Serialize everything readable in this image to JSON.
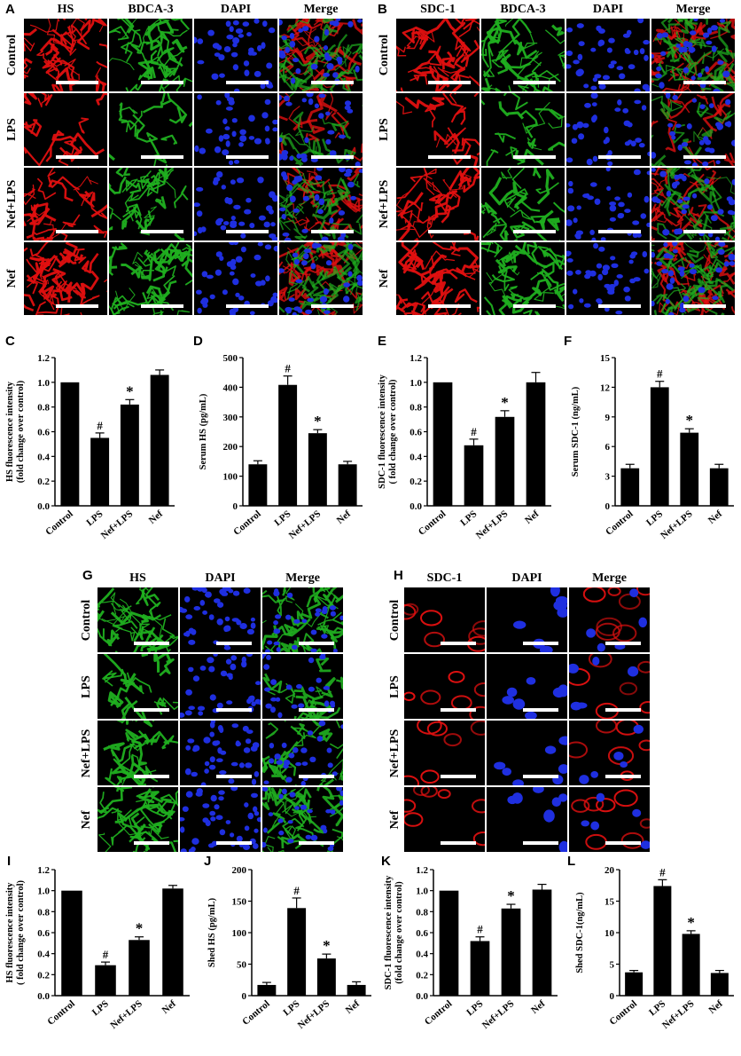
{
  "panel_letters": [
    "A",
    "B",
    "C",
    "D",
    "E",
    "F",
    "G",
    "H",
    "I",
    "J",
    "K",
    "L"
  ],
  "panel_A": {
    "columns": [
      "HS",
      "BDCA-3",
      "DAPI",
      "Merge"
    ],
    "rows": [
      "Control",
      "LPS",
      "Nef+LPS",
      "Nef"
    ]
  },
  "panel_B": {
    "columns": [
      "SDC-1",
      "BDCA-3",
      "DAPI",
      "Merge"
    ],
    "rows": [
      "Control",
      "LPS",
      "Nef+LPS",
      "Nef"
    ]
  },
  "panel_G": {
    "columns": [
      "HS",
      "DAPI",
      "Merge"
    ],
    "rows": [
      "Control",
      "LPS",
      "Nef+LPS",
      "Nef"
    ]
  },
  "panel_H": {
    "columns": [
      "SDC-1",
      "DAPI",
      "Merge"
    ],
    "rows": [
      "Control",
      "LPS",
      "Nef+LPS",
      "Nef"
    ]
  },
  "colors": {
    "red_stain": "#e01010",
    "green_stain": "#20b020",
    "blue_stain": "#1f2fe0",
    "bar": "#000000"
  },
  "chart_data": [
    {
      "id": "C",
      "type": "bar",
      "categories": [
        "Control",
        "LPS",
        "Nef+LPS",
        "Nef"
      ],
      "values": [
        1.0,
        0.55,
        0.82,
        1.06
      ],
      "errors": [
        0,
        0.04,
        0.04,
        0.04
      ],
      "marks": [
        "",
        "#",
        "*",
        ""
      ],
      "ylabel_lines": [
        "HS fluorescence intensity",
        "(fold change over control)"
      ],
      "ylim": [
        0,
        1.2
      ],
      "ticks": [
        "0.0",
        "0.2",
        "0.4",
        "0.6",
        "0.8",
        "1.0",
        "1.2"
      ]
    },
    {
      "id": "D",
      "type": "bar",
      "categories": [
        "Control",
        "LPS",
        "Nef+LPS",
        "Nef"
      ],
      "values": [
        140,
        408,
        245,
        140
      ],
      "errors": [
        12,
        30,
        12,
        10
      ],
      "marks": [
        "",
        "#",
        "*",
        ""
      ],
      "ylabel_lines": [
        "Serum HS (pg/mL)"
      ],
      "ylim": [
        0,
        500
      ],
      "ticks": [
        "0",
        "100",
        "200",
        "300",
        "400",
        "500"
      ]
    },
    {
      "id": "E",
      "type": "bar",
      "categories": [
        "Control",
        "LPS",
        "Nef+LPS",
        "Nef"
      ],
      "values": [
        1.0,
        0.49,
        0.72,
        1.0
      ],
      "errors": [
        0,
        0.05,
        0.05,
        0.08
      ],
      "marks": [
        "",
        "#",
        "*",
        ""
      ],
      "ylabel_lines": [
        "SDC-1 fluorescence intensity",
        "( fold change over control)"
      ],
      "ylim": [
        0,
        1.2
      ],
      "ticks": [
        "0.0",
        "0.2",
        "0.4",
        "0.6",
        "0.8",
        "1.0",
        "1.2"
      ]
    },
    {
      "id": "F",
      "type": "bar",
      "categories": [
        "Control",
        "LPS",
        "Nef+LPS",
        "Nef"
      ],
      "values": [
        3.8,
        12.0,
        7.4,
        3.8
      ],
      "errors": [
        0.4,
        0.6,
        0.4,
        0.4
      ],
      "marks": [
        "",
        "#",
        "*",
        ""
      ],
      "ylabel_lines": [
        "Serum SDC-1 (ng/mL)"
      ],
      "ylim": [
        0,
        15
      ],
      "ticks": [
        "0",
        "3",
        "6",
        "9",
        "12",
        "15"
      ]
    },
    {
      "id": "I",
      "type": "bar",
      "categories": [
        "Control",
        "LPS",
        "Nef+LPS",
        "Nef"
      ],
      "values": [
        1.0,
        0.29,
        0.53,
        1.02
      ],
      "errors": [
        0,
        0.03,
        0.03,
        0.03
      ],
      "marks": [
        "",
        "#",
        "*",
        ""
      ],
      "ylabel_lines": [
        "HS fluorescence intensity",
        "( fold change over control)"
      ],
      "ylim": [
        0,
        1.2
      ],
      "ticks": [
        "0.0",
        "0.2",
        "0.4",
        "0.6",
        "0.8",
        "1.0",
        "1.2"
      ]
    },
    {
      "id": "J",
      "type": "bar",
      "categories": [
        "Control",
        "LPS",
        "Nef+LPS",
        "Nef"
      ],
      "values": [
        17,
        139,
        59,
        17
      ],
      "errors": [
        4,
        16,
        7,
        5
      ],
      "marks": [
        "",
        "#",
        "*",
        ""
      ],
      "ylabel_lines": [
        "Shed HS (pg/mL)"
      ],
      "ylim": [
        0,
        200
      ],
      "ticks": [
        "0",
        "50",
        "100",
        "150",
        "200"
      ]
    },
    {
      "id": "K",
      "type": "bar",
      "categories": [
        "Control",
        "LPS",
        "Nef+LPS",
        "Nef"
      ],
      "values": [
        1.0,
        0.52,
        0.83,
        1.01
      ],
      "errors": [
        0,
        0.04,
        0.04,
        0.05
      ],
      "marks": [
        "",
        "#",
        "*",
        ""
      ],
      "ylabel_lines": [
        "SDC-1 fluorescence intensity",
        "(fold change over control)"
      ],
      "ylim": [
        0,
        1.2
      ],
      "ticks": [
        "0.0",
        "0.2",
        "0.4",
        "0.6",
        "0.8",
        "1.0",
        "1.2"
      ]
    },
    {
      "id": "L",
      "type": "bar",
      "categories": [
        "Control",
        "LPS",
        "Nef+LPS",
        "Nef"
      ],
      "values": [
        3.7,
        17.4,
        9.8,
        3.6
      ],
      "errors": [
        0.3,
        1.0,
        0.5,
        0.4
      ],
      "marks": [
        "",
        "#",
        "*",
        ""
      ],
      "ylabel_lines": [
        "Shed SDC-1(ng/mL)"
      ],
      "ylim": [
        0,
        20
      ],
      "ticks": [
        "0",
        "5",
        "10",
        "15",
        "20"
      ]
    }
  ]
}
